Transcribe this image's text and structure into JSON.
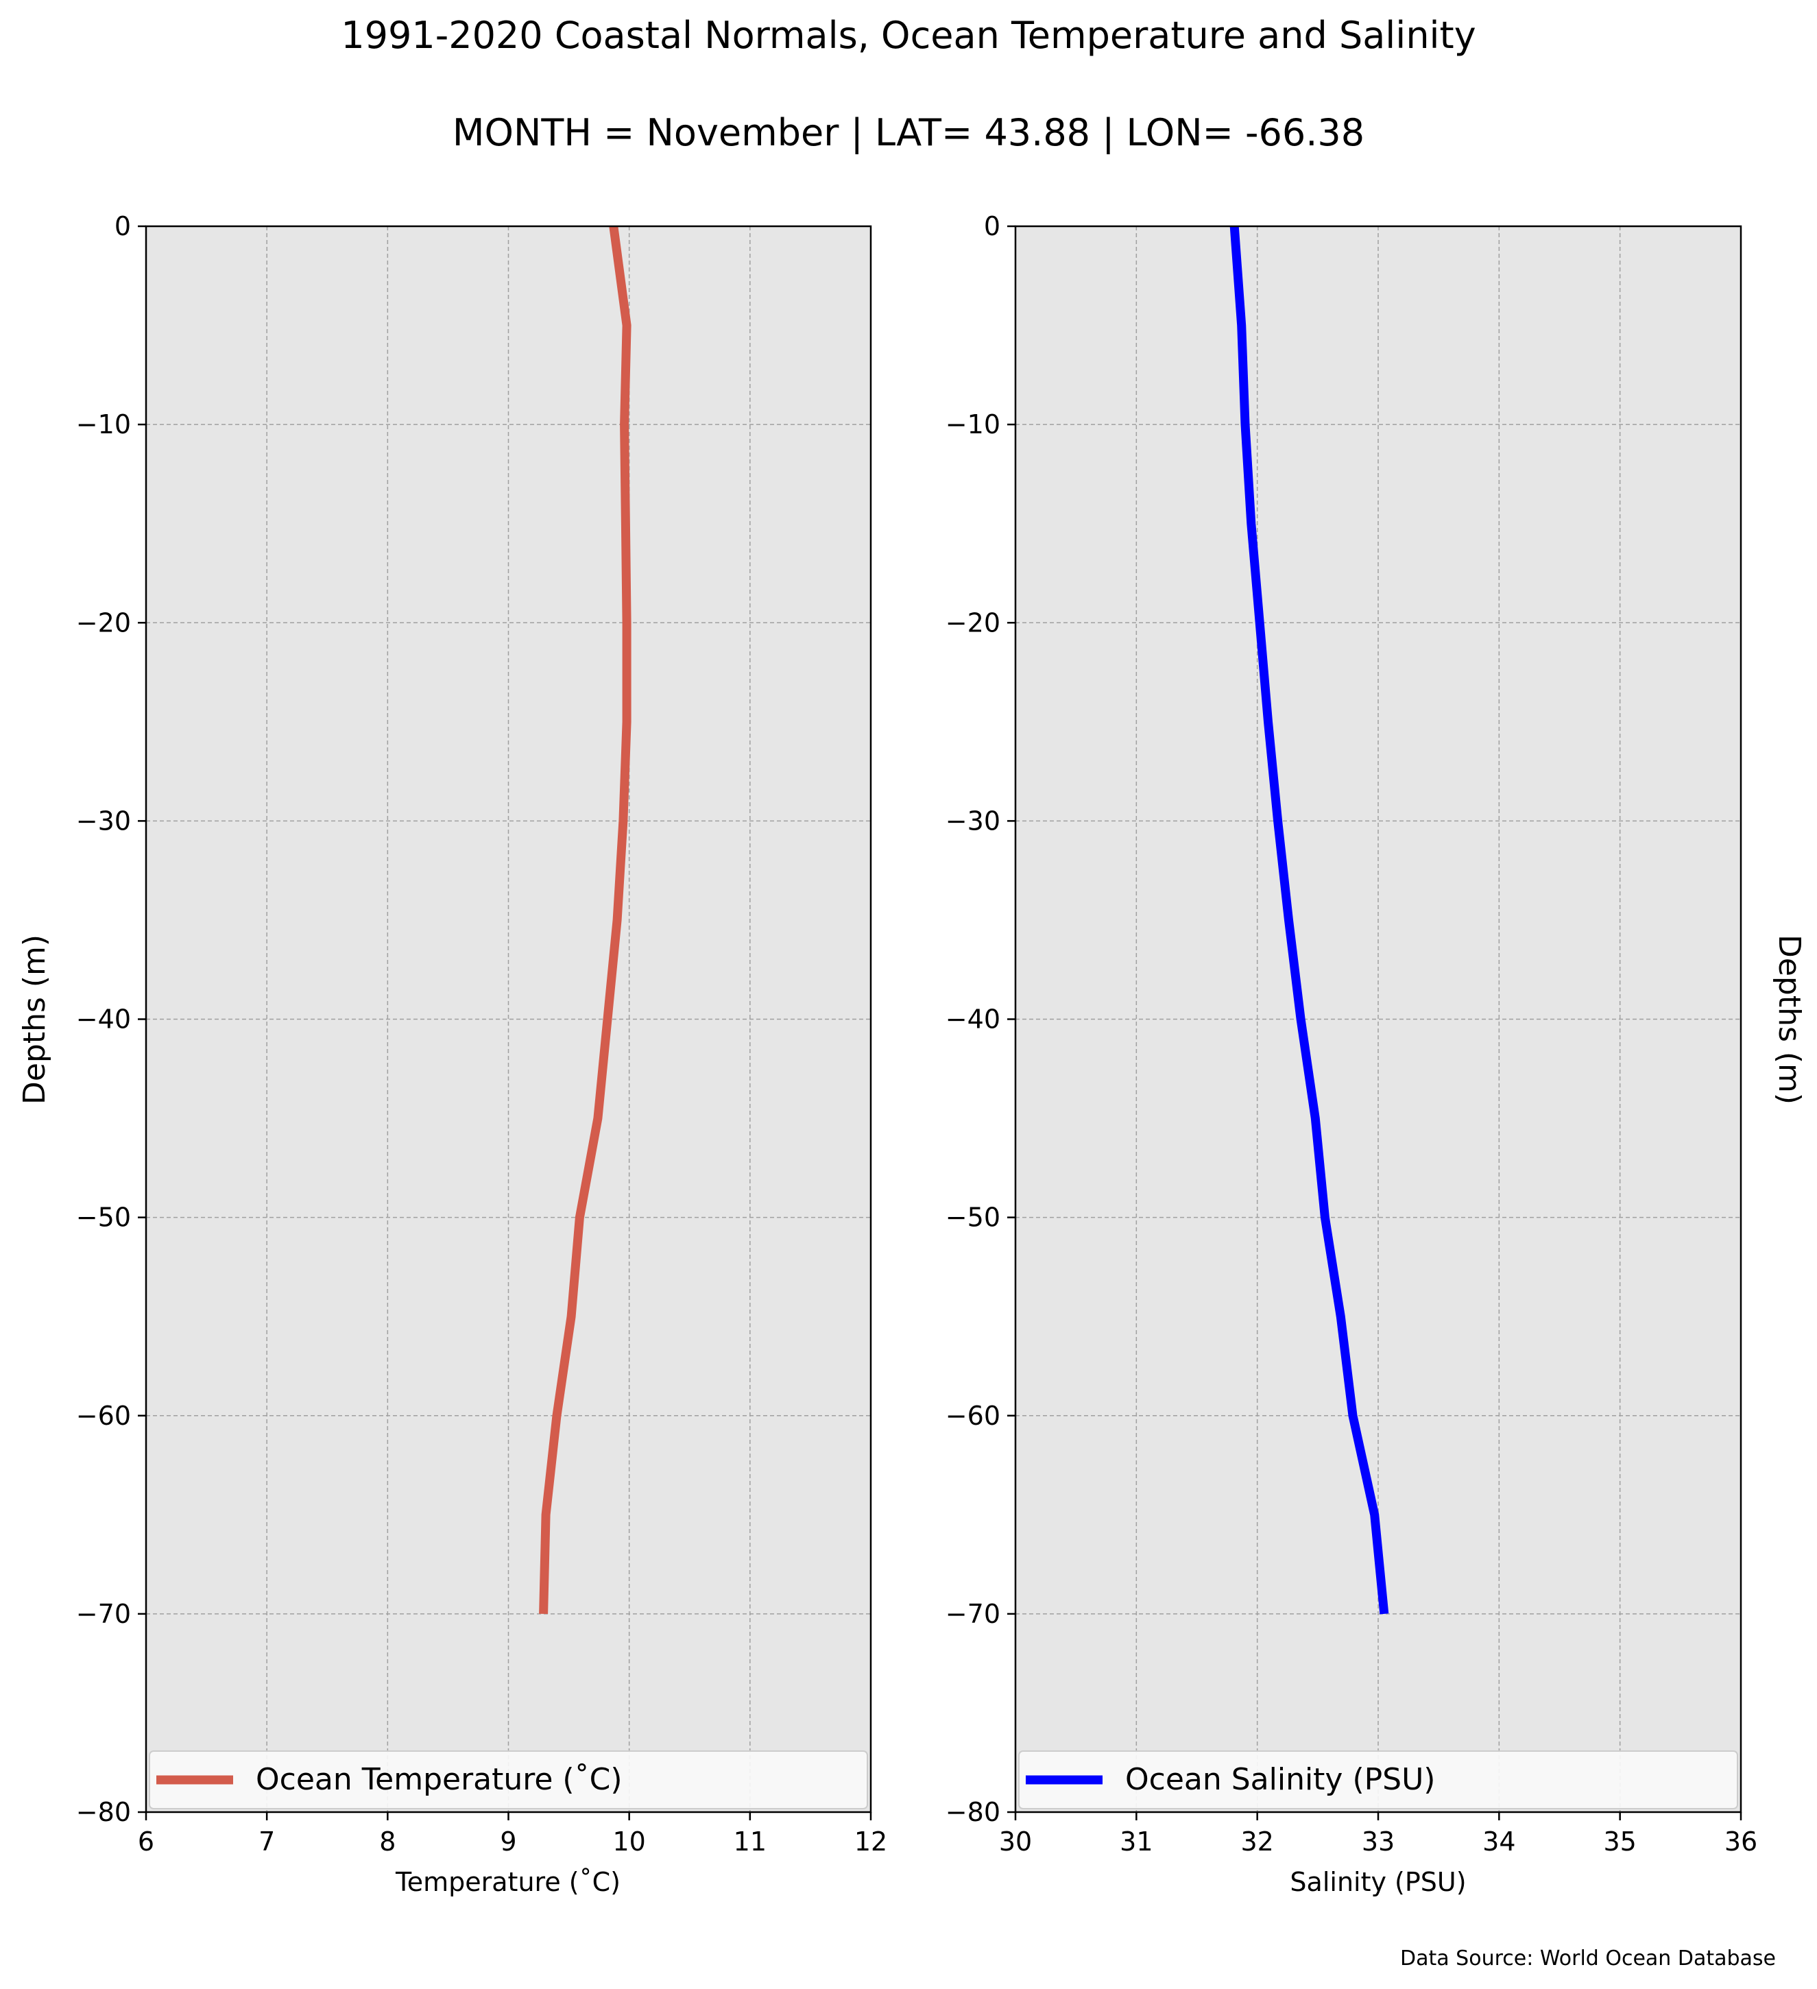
{
  "title": "1991-2020 Coastal Normals, Ocean Temperature and Salinity",
  "subtitle": "MONTH = November | LAT= 43.88 | LON= -66.38",
  "source_note": "Data Source: World Ocean Database",
  "colors": {
    "temperature": "#d35c4c",
    "salinity": "#0000ff",
    "plot_bg": "#e6e6e6",
    "grid": "#a0a0a0"
  },
  "chart_data": [
    {
      "type": "line",
      "xlabel": "Temperature ($^\\circ$C)",
      "xlabel_display": "Temperature (˚C)",
      "ylabel": "Depths (m)",
      "xlim": [
        6,
        12
      ],
      "ylim": [
        -80,
        0
      ],
      "xticks": [
        "6",
        "7",
        "8",
        "9",
        "10",
        "11",
        "12"
      ],
      "yticks": [
        "0",
        "−10",
        "−20",
        "−30",
        "−40",
        "−50",
        "−60",
        "−70",
        "−80"
      ],
      "grid": true,
      "legend": {
        "position": "bottom",
        "label": "Ocean Temperature (˚C)"
      },
      "series": [
        {
          "name": "Ocean Temperature (˚C)",
          "x": [
            9.87,
            9.98,
            9.96,
            9.97,
            9.98,
            9.98,
            9.95,
            9.9,
            9.82,
            9.74,
            9.59,
            9.52,
            9.4,
            9.31,
            9.29
          ],
          "y": [
            0,
            -5,
            -10,
            -15,
            -20,
            -25,
            -30,
            -35,
            -40,
            -45,
            -50,
            -55,
            -60,
            -65,
            -70
          ]
        }
      ]
    },
    {
      "type": "line",
      "xlabel": "Salinity (PSU)",
      "ylabel": "Depths (m)",
      "xlim": [
        30,
        36
      ],
      "ylim": [
        -80,
        0
      ],
      "xticks": [
        "30",
        "31",
        "32",
        "33",
        "34",
        "35",
        "36"
      ],
      "yticks": [
        "0",
        "−10",
        "−20",
        "−30",
        "−40",
        "−50",
        "−60",
        "−70",
        "−80"
      ],
      "grid": true,
      "legend": {
        "position": "bottom",
        "label": "Ocean Salinity (PSU)"
      },
      "series": [
        {
          "name": "Ocean Salinity (PSU)",
          "x": [
            31.81,
            31.87,
            31.9,
            31.95,
            32.02,
            32.09,
            32.17,
            32.26,
            32.36,
            32.48,
            32.56,
            32.69,
            32.79,
            32.97,
            33.05
          ],
          "y": [
            0,
            -5,
            -10,
            -15,
            -20,
            -25,
            -30,
            -35,
            -40,
            -45,
            -50,
            -55,
            -60,
            -65,
            -70
          ]
        }
      ]
    }
  ]
}
